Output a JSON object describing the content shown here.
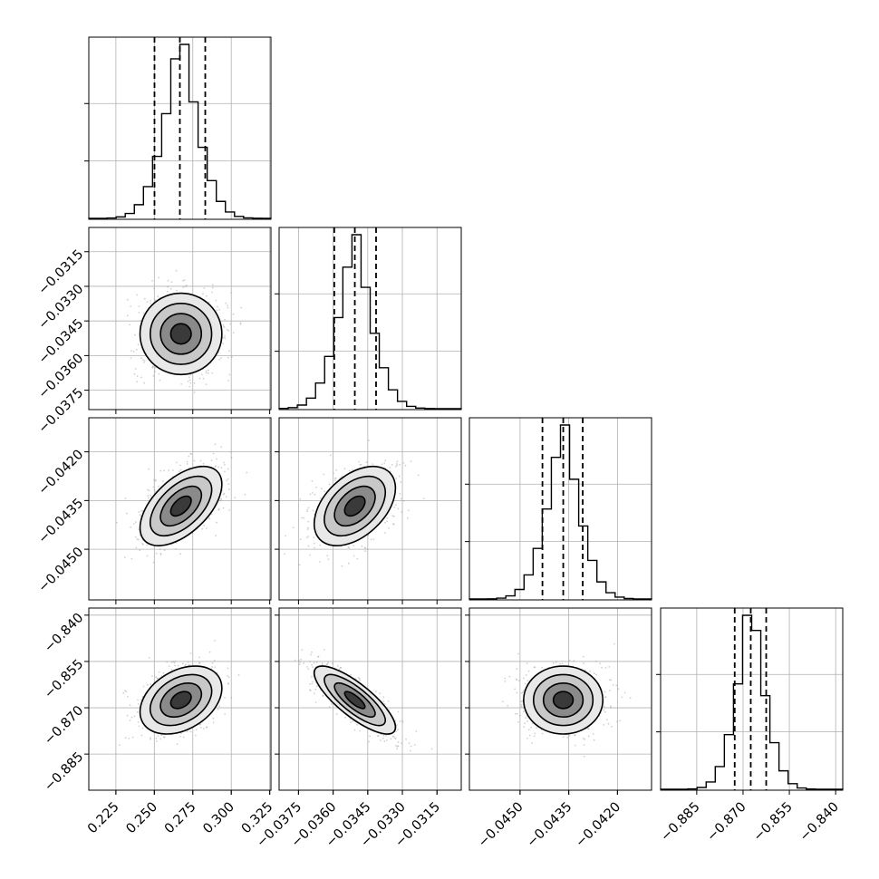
{
  "chart_data": {
    "type": "corner",
    "params": [
      {
        "ticks": [
          0.225,
          0.25,
          0.275,
          0.3,
          0.325
        ],
        "tick_labels": [
          "0.225",
          "0.250",
          "0.275",
          "0.300",
          "0.325"
        ],
        "range": [
          0.2074,
          0.3258
        ],
        "mean": 0.2673,
        "sd": 0.0133,
        "quantiles": [
          0.2501,
          0.2666,
          0.2831
        ]
      },
      {
        "ticks": [
          -0.0375,
          -0.036,
          -0.0345,
          -0.033,
          -0.0315
        ],
        "tick_labels": [
          "−0.0375",
          "−0.0360",
          "−0.0345",
          "−0.0330",
          "−0.0315"
        ],
        "range": [
          -0.03834,
          -0.03045
        ],
        "mean": -0.03506,
        "sd": 0.00088,
        "quantiles": [
          -0.03595,
          -0.03506,
          -0.03414
        ]
      },
      {
        "ticks": [
          -0.045,
          -0.0435,
          -0.042
        ],
        "tick_labels": [
          "−0.0450",
          "−0.0435",
          "−0.0420"
        ],
        "range": [
          -0.04656,
          -0.04095
        ],
        "mean": -0.04367,
        "sd": 0.00061,
        "quantiles": [
          -0.04431,
          -0.04367,
          -0.04307
        ]
      },
      {
        "ticks": [
          -0.885,
          -0.87,
          -0.855,
          -0.84
        ],
        "tick_labels": [
          "−0.885",
          "−0.870",
          "−0.855",
          "−0.840"
        ],
        "range": [
          -0.8967,
          -0.8377
        ],
        "mean": -0.8675,
        "sd": 0.0055,
        "quantiles": [
          -0.8727,
          -0.8675,
          -0.8625
        ]
      }
    ],
    "correlations": [
      {
        "pair": [
          1,
          0
        ],
        "r": 0.0
      },
      {
        "pair": [
          2,
          0
        ],
        "r": 0.55
      },
      {
        "pair": [
          2,
          1
        ],
        "r": 0.45
      },
      {
        "pair": [
          3,
          0
        ],
        "r": 0.35
      },
      {
        "pair": [
          3,
          1
        ],
        "r": -0.8
      },
      {
        "pair": [
          3,
          2
        ],
        "r": 0.0
      }
    ],
    "histogram_bins": 20,
    "contour_levels": [
      "0.5 sigma",
      "1 sigma",
      "1.5 sigma",
      "2 sigma"
    ],
    "scatter_points_per_panel": 900,
    "grid": true,
    "colors": {
      "scatter": "#9a9a9a",
      "contour": "#000000",
      "hist": "#000000",
      "grid": "#b0b0b0",
      "density": "#000000"
    }
  }
}
